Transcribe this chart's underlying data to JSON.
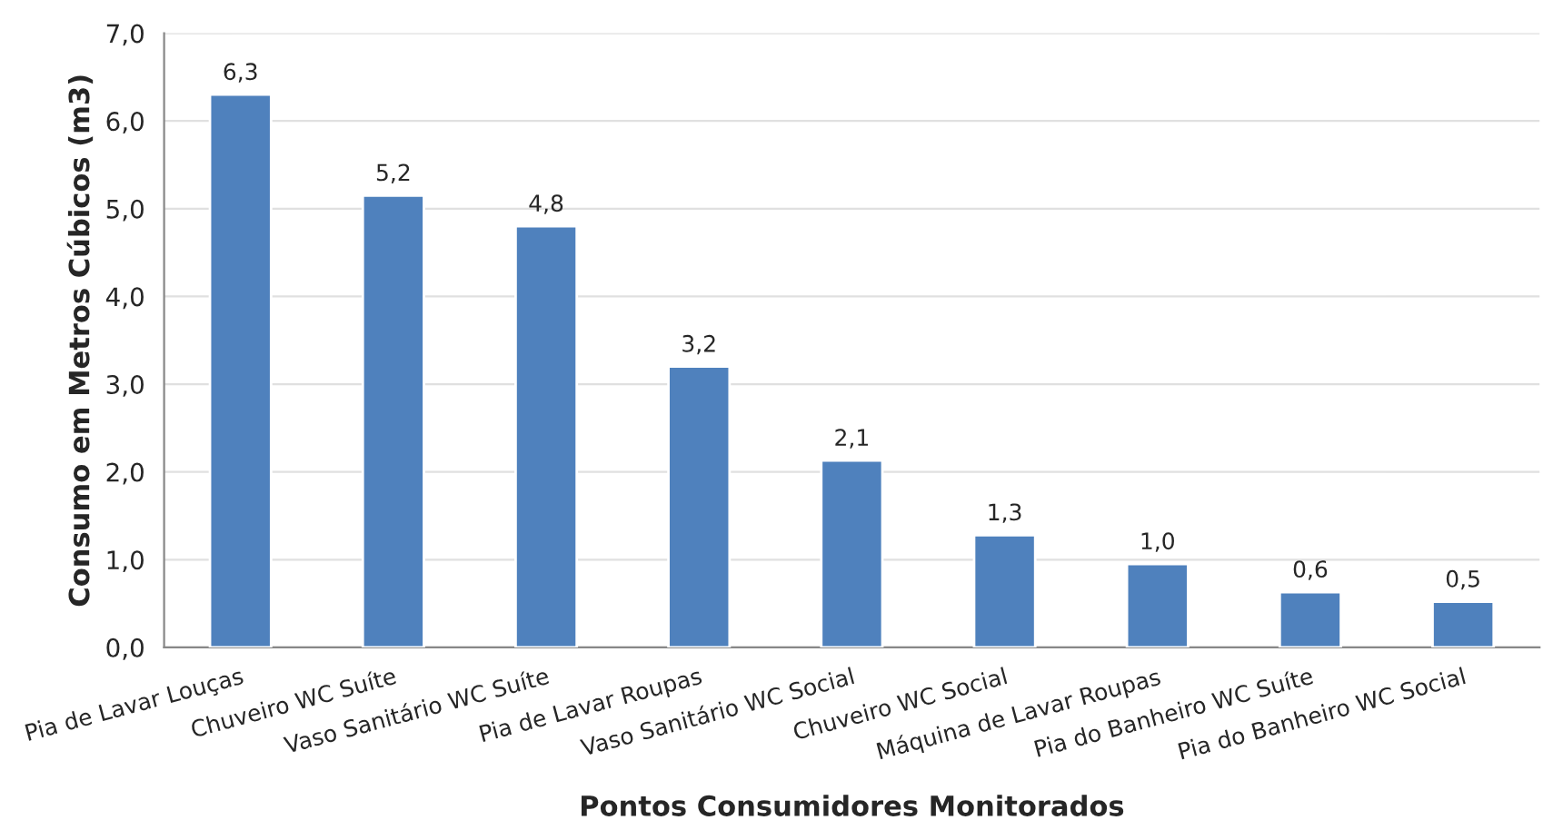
{
  "chart_data": {
    "type": "bar",
    "xlabel": "Pontos Consumidores Monitorados",
    "ylabel": "Consumo em Metros Cúbicos (m3)",
    "categories": [
      "Pia de Lavar Louças",
      "Chuveiro WC Suíte",
      "Vaso Sanitário WC Suíte",
      "Pia de Lavar Roupas",
      "Vaso Sanitário WC Social",
      "Chuveiro WC Social",
      "Máquina de Lavar Roupas",
      "Pia do Banheiro WC Suíte",
      "Pia do Banheiro WC Social"
    ],
    "values": [
      6.3,
      5.15,
      4.8,
      3.2,
      2.13,
      1.28,
      0.95,
      0.63,
      0.52
    ],
    "value_labels": [
      "6,3",
      "5,2",
      "4,8",
      "3,2",
      "2,1",
      "1,3",
      "1,0",
      "0,6",
      "0,5"
    ],
    "color": "#4f81bd",
    "ylim": [
      0,
      7
    ],
    "yticks": [
      {
        "value": 0,
        "label": "0,0"
      },
      {
        "value": 1,
        "label": "1,0"
      },
      {
        "value": 2,
        "label": "2,0"
      },
      {
        "value": 3,
        "label": "3,0"
      },
      {
        "value": 4,
        "label": "4,0"
      },
      {
        "value": 5,
        "label": "5,0"
      },
      {
        "value": 6,
        "label": "6,0"
      },
      {
        "value": 7,
        "label": "7,0"
      }
    ],
    "grid": "y"
  }
}
